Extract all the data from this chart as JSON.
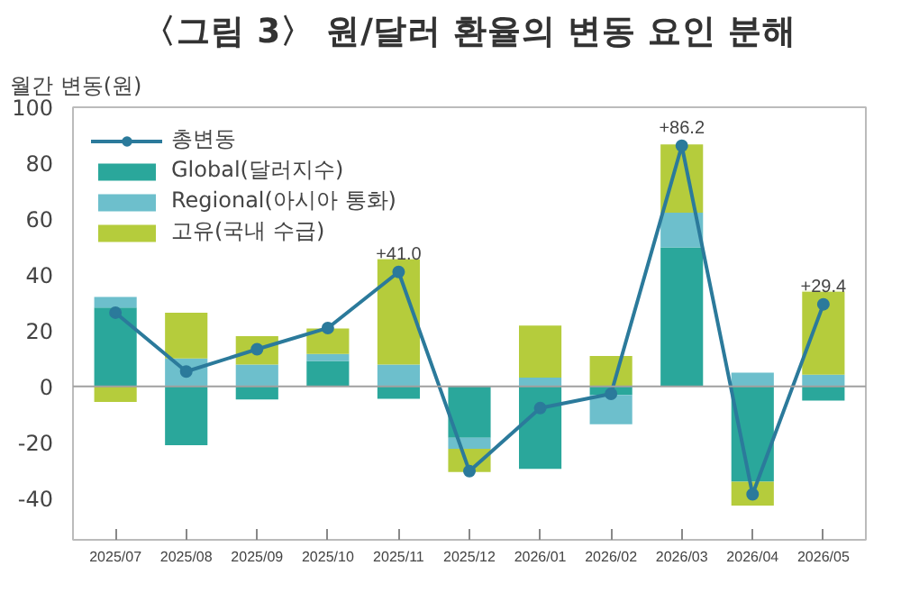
{
  "chart_data": {
    "type": "bar",
    "title": "〈그림 3〉 원/달러 환율의 변동 요인 분해",
    "ylabel": "월간 변동(원)",
    "categories": [
      "2025/07",
      "2025/08",
      "2025/09",
      "2025/10",
      "2025/11",
      "2025/12",
      "2026/01",
      "2026/02",
      "2026/03",
      "2026/04",
      "2026/05"
    ],
    "stacked": true,
    "ylim": [
      -55,
      100
    ],
    "yticks": [
      -40,
      -20,
      0,
      20,
      40,
      60,
      80,
      100
    ],
    "grid": false,
    "legend": "top left",
    "marker": "circle",
    "line_style": "solid",
    "ref_lines": [
      {
        "axis": "y",
        "value": 0,
        "color": "#a0a0a0"
      }
    ],
    "series": [
      {
        "name": "총변동",
        "type": "line",
        "color": "#2b7a9b",
        "values": [
          26.4,
          5.3,
          13.3,
          20.9,
          41.0,
          -30.4,
          -7.8,
          -2.7,
          86.2,
          -38.7,
          29.4
        ],
        "value_labels": [
          null,
          null,
          null,
          null,
          "+41.0",
          null,
          null,
          null,
          "+86.2",
          null,
          "+29.4"
        ]
      },
      {
        "name": "Global(달러지수)",
        "color": "#2aa79b",
        "values": [
          28.2,
          -21.1,
          -4.7,
          9.1,
          -4.5,
          -18.4,
          -29.6,
          -3.1,
          49.8,
          -34.2,
          -5.1
        ]
      },
      {
        "name": "Regional(아시아 통화)",
        "color": "#6dbfcc",
        "values": [
          3.8,
          10.0,
          7.8,
          2.5,
          7.8,
          -4.0,
          3.1,
          -10.5,
          12.4,
          4.9,
          4.2
        ]
      },
      {
        "name": "고유(국내 수급)",
        "color": "#b5cc3c",
        "values": [
          -5.6,
          16.4,
          10.2,
          9.1,
          38.0,
          -8.3,
          18.7,
          10.9,
          24.5,
          -8.5,
          30.2
        ]
      }
    ]
  }
}
